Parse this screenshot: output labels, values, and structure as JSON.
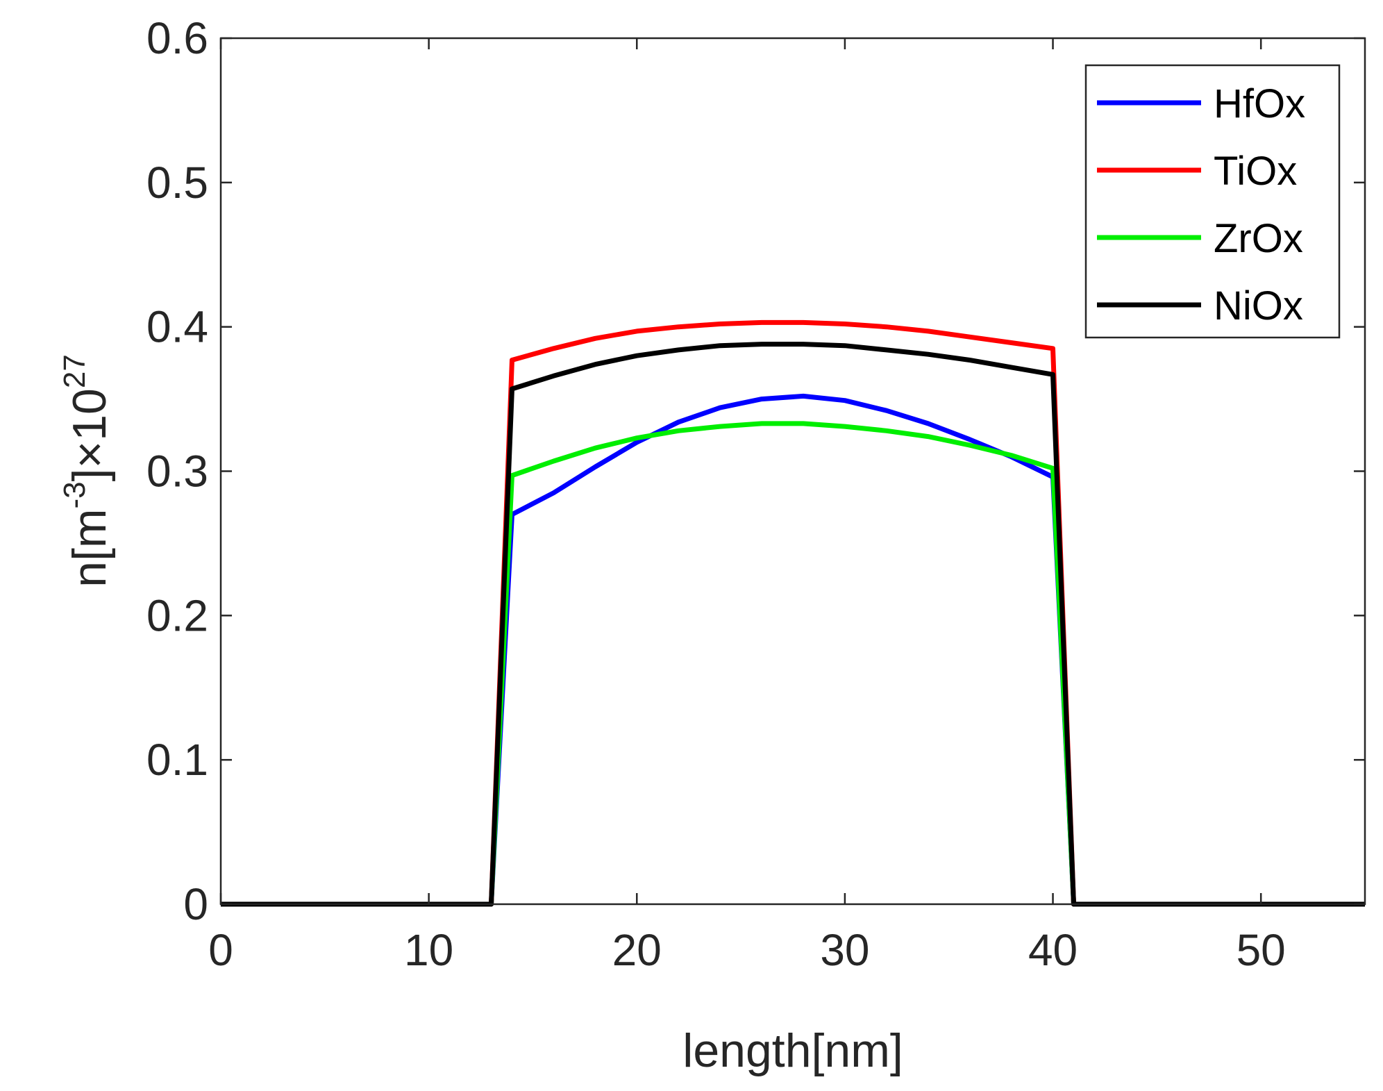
{
  "chart_data": {
    "type": "line",
    "title": "",
    "xlabel": "length[nm]",
    "ylabel": {
      "base": "n[m",
      "exp1": "-3",
      "mid": "]×10",
      "exp2": "27"
    },
    "xlim": [
      0,
      55
    ],
    "ylim": [
      0,
      0.6
    ],
    "xticks": [
      0,
      10,
      20,
      30,
      40,
      50
    ],
    "yticks": [
      0,
      0.1,
      0.2,
      0.3,
      0.4,
      0.5,
      0.6
    ],
    "xtick_labels": [
      "0",
      "10",
      "20",
      "30",
      "40",
      "50"
    ],
    "ytick_labels": [
      "0",
      "0.1",
      "0.2",
      "0.3",
      "0.4",
      "0.5",
      "0.6"
    ],
    "grid": false,
    "legend_position": "top-right",
    "series": [
      {
        "name": "HfOx",
        "color": "#0000ff",
        "x": [
          0,
          13,
          14,
          16,
          18,
          20,
          22,
          24,
          26,
          28,
          30,
          32,
          34,
          36,
          38,
          40,
          41,
          55
        ],
        "y": [
          0,
          0,
          0.27,
          0.285,
          0.303,
          0.32,
          0.334,
          0.344,
          0.35,
          0.352,
          0.349,
          0.342,
          0.333,
          0.322,
          0.31,
          0.296,
          0,
          0
        ]
      },
      {
        "name": "TiOx",
        "color": "#ff0000",
        "x": [
          0,
          13,
          14,
          16,
          18,
          20,
          22,
          24,
          26,
          28,
          30,
          32,
          34,
          36,
          38,
          40,
          41,
          55
        ],
        "y": [
          0,
          0,
          0.377,
          0.385,
          0.392,
          0.397,
          0.4,
          0.402,
          0.403,
          0.403,
          0.402,
          0.4,
          0.397,
          0.393,
          0.389,
          0.385,
          0,
          0
        ]
      },
      {
        "name": "ZrOx",
        "color": "#00ee00",
        "x": [
          0,
          13,
          14,
          16,
          18,
          20,
          22,
          24,
          26,
          28,
          30,
          32,
          34,
          36,
          38,
          40,
          41,
          55
        ],
        "y": [
          0,
          0,
          0.297,
          0.307,
          0.316,
          0.323,
          0.328,
          0.331,
          0.333,
          0.333,
          0.331,
          0.328,
          0.324,
          0.318,
          0.311,
          0.302,
          0,
          0
        ]
      },
      {
        "name": "NiOx",
        "color": "#000000",
        "x": [
          0,
          13,
          14,
          16,
          18,
          20,
          22,
          24,
          26,
          28,
          30,
          32,
          34,
          36,
          38,
          40,
          41,
          55
        ],
        "y": [
          0,
          0,
          0.357,
          0.366,
          0.374,
          0.38,
          0.384,
          0.387,
          0.388,
          0.388,
          0.387,
          0.384,
          0.381,
          0.377,
          0.372,
          0.367,
          0,
          0
        ]
      }
    ]
  }
}
